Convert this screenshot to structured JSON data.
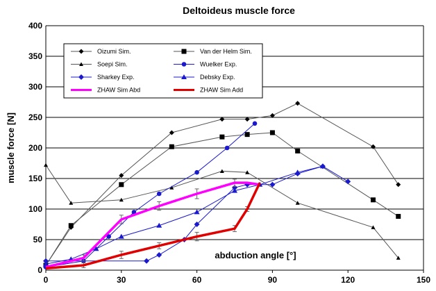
{
  "chart_data": {
    "type": "line",
    "title": "Deltoideus muscle force",
    "xlabel": "abduction angle [°]",
    "ylabel": "muscle force [N]",
    "xlim": [
      0,
      150
    ],
    "ylim": [
      0,
      400
    ],
    "x_ticks": [
      "0",
      "30",
      "60",
      "90",
      "120",
      "150"
    ],
    "y_ticks": [
      "0",
      "50",
      "100",
      "150",
      "200",
      "250",
      "300",
      "350",
      "400"
    ],
    "grid": "horizontal",
    "legend_position": "upper-left",
    "series": [
      {
        "name": "Oizumi Sim.",
        "color": "#555555",
        "marker": "diamond-small",
        "error": [],
        "points": [
          [
            0,
            8
          ],
          [
            10,
            70
          ],
          [
            30,
            155
          ],
          [
            50,
            225
          ],
          [
            70,
            247
          ],
          [
            80,
            247
          ],
          [
            90,
            253
          ],
          [
            100,
            273
          ],
          [
            130,
            202
          ],
          [
            140,
            140
          ]
        ]
      },
      {
        "name": "Van der Helm Sim.",
        "color": "#555555",
        "marker": "square",
        "error": [],
        "points": [
          [
            0,
            8
          ],
          [
            10,
            73
          ],
          [
            30,
            140
          ],
          [
            50,
            202
          ],
          [
            70,
            218
          ],
          [
            80,
            222
          ],
          [
            90,
            225
          ],
          [
            100,
            195
          ],
          [
            130,
            115
          ],
          [
            140,
            88
          ]
        ]
      },
      {
        "name": "Soepi Sim.",
        "color": "#555555",
        "marker": "triangle-small",
        "error": [],
        "points": [
          [
            0,
            172
          ],
          [
            10,
            110
          ],
          [
            30,
            115
          ],
          [
            50,
            135
          ],
          [
            70,
            162
          ],
          [
            80,
            160
          ],
          [
            100,
            110
          ],
          [
            130,
            70
          ],
          [
            140,
            20
          ]
        ]
      },
      {
        "name": "Wuelker Exp.",
        "color": "#1a1acc",
        "marker": "circle",
        "error": [],
        "points": [
          [
            0,
            5
          ],
          [
            15,
            15
          ],
          [
            25,
            55
          ],
          [
            35,
            95
          ],
          [
            45,
            125
          ],
          [
            60,
            160
          ],
          [
            72,
            200
          ],
          [
            83,
            240
          ]
        ]
      },
      {
        "name": "Sharkey Exp.",
        "color": "#1a1acc",
        "marker": "diamond",
        "error": [],
        "points": [
          [
            0,
            15
          ],
          [
            40,
            15
          ],
          [
            45,
            25
          ],
          [
            55,
            50
          ],
          [
            60,
            75
          ],
          [
            75,
            135
          ],
          [
            80,
            140
          ],
          [
            90,
            140
          ],
          [
            100,
            158
          ],
          [
            110,
            170
          ],
          [
            120,
            145
          ]
        ]
      },
      {
        "name": "Debsky Exp.",
        "color": "#1a1acc",
        "marker": "triangle",
        "error": [],
        "points": [
          [
            0,
            10
          ],
          [
            10,
            18
          ],
          [
            20,
            35
          ],
          [
            30,
            55
          ],
          [
            45,
            73
          ],
          [
            60,
            95
          ],
          [
            75,
            130
          ],
          [
            85,
            140
          ],
          [
            100,
            160
          ],
          [
            110,
            170
          ]
        ]
      },
      {
        "name": "ZHAW Sim Abd",
        "color": "#ff00ff",
        "marker": "none",
        "points": [
          [
            0,
            5
          ],
          [
            15,
            20
          ],
          [
            30,
            83
          ],
          [
            45,
            105
          ],
          [
            60,
            125
          ],
          [
            75,
            143
          ],
          [
            80,
            143
          ],
          [
            85,
            140
          ]
        ],
        "error": [
          [
            15,
            5
          ],
          [
            30,
            7
          ],
          [
            45,
            7
          ],
          [
            60,
            8
          ],
          [
            75,
            6
          ]
        ]
      },
      {
        "name": "ZHAW Sim Add",
        "color": "#e00000",
        "marker": "none",
        "points": [
          [
            0,
            3
          ],
          [
            15,
            8
          ],
          [
            30,
            25
          ],
          [
            45,
            40
          ],
          [
            60,
            55
          ],
          [
            75,
            68
          ],
          [
            80,
            100
          ],
          [
            85,
            143
          ]
        ],
        "error": [
          [
            15,
            4
          ],
          [
            30,
            6
          ],
          [
            45,
            5
          ],
          [
            60,
            7
          ],
          [
            75,
            5
          ],
          [
            80,
            4
          ]
        ]
      }
    ]
  }
}
